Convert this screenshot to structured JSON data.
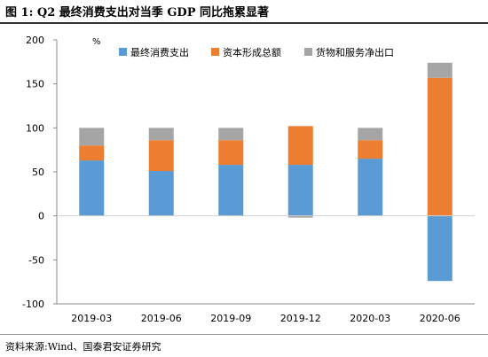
{
  "header": {
    "title": "图 1:  Q2 最终消费支出对当季 GDP 同比拖累显著"
  },
  "footer": {
    "source": "资料来源:Wind、国泰君安证券研究"
  },
  "chart_data": {
    "type": "bar",
    "stacked": true,
    "ylabel": "%",
    "ylim": [
      -100,
      200
    ],
    "yticks": [
      -100,
      -50,
      0,
      50,
      100,
      150,
      200
    ],
    "grid": false,
    "legend_position": "top",
    "categories": [
      "2019-03",
      "2019-06",
      "2019-09",
      "2019-12",
      "2020-03",
      "2020-06"
    ],
    "series": [
      {
        "name": "最终消费支出",
        "color": "#5b9bd5",
        "values": [
          63,
          51,
          58,
          58,
          65,
          -74
        ]
      },
      {
        "name": "资本形成总额",
        "color": "#ed7d31",
        "values": [
          17,
          35,
          28,
          44,
          21,
          157
        ]
      },
      {
        "name": "货物和服务净出口",
        "color": "#a5a5a5",
        "values": [
          20,
          14,
          14,
          -2,
          14,
          17
        ]
      }
    ]
  }
}
